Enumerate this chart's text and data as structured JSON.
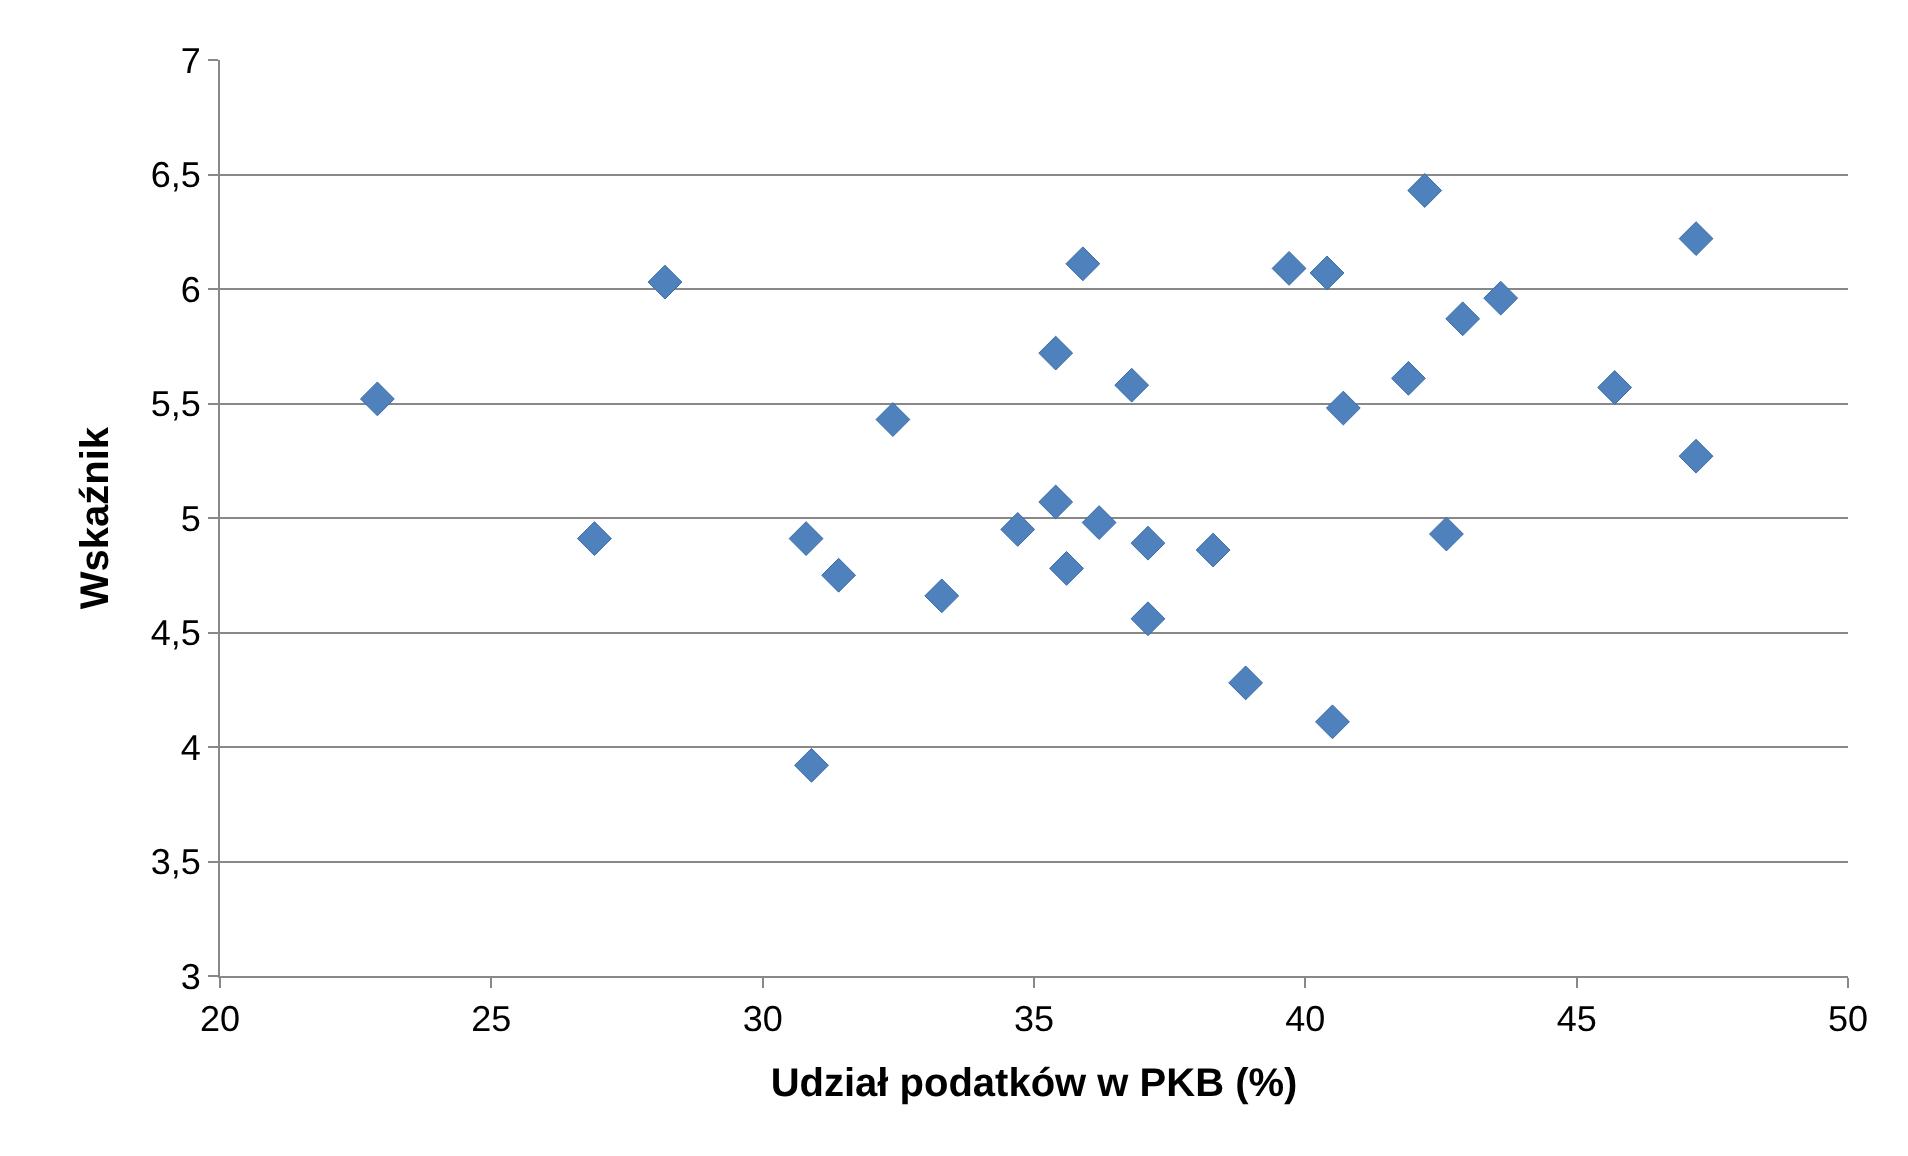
{
  "chart_data": {
    "type": "scatter",
    "xlabel": "Udział podatków w PKB (%)",
    "ylabel": "Wskaźnik",
    "x": [
      22.9,
      26.9,
      28.2,
      30.8,
      30.9,
      31.4,
      32.4,
      33.3,
      34.7,
      35.4,
      35.4,
      35.6,
      35.9,
      36.2,
      36.8,
      37.1,
      37.1,
      38.3,
      38.9,
      39.7,
      40.4,
      40.5,
      40.7,
      41.9,
      42.2,
      42.6,
      42.9,
      43.6,
      45.7,
      47.2,
      47.2
    ],
    "series": [
      {
        "color": "#4f81bd",
        "values": [
          5.52,
          4.91,
          6.03,
          4.91,
          3.92,
          4.75,
          5.43,
          4.66,
          4.95,
          5.72,
          5.07,
          4.78,
          6.11,
          4.98,
          5.58,
          4.89,
          4.56,
          4.86,
          4.28,
          6.09,
          6.07,
          4.11,
          5.48,
          5.61,
          6.43,
          4.93,
          5.87,
          5.96,
          5.57,
          6.22,
          5.27
        ]
      }
    ],
    "xlim": [
      20,
      50
    ],
    "xticks": [
      20,
      25,
      30,
      35,
      40,
      45,
      50
    ],
    "ylim": [
      3,
      7
    ],
    "yticks": [
      {
        "value": 3,
        "label": "3"
      },
      {
        "value": 3.5,
        "label": "3,5"
      },
      {
        "value": 4,
        "label": "4"
      },
      {
        "value": 4.5,
        "label": "4,5"
      },
      {
        "value": 5,
        "label": "5"
      },
      {
        "value": 5.5,
        "label": "5,5"
      },
      {
        "value": 6,
        "label": "6"
      },
      {
        "value": 6.5,
        "label": "6,5"
      },
      {
        "value": 7,
        "label": "7"
      }
    ],
    "grid": "y",
    "marker": "diamond"
  }
}
